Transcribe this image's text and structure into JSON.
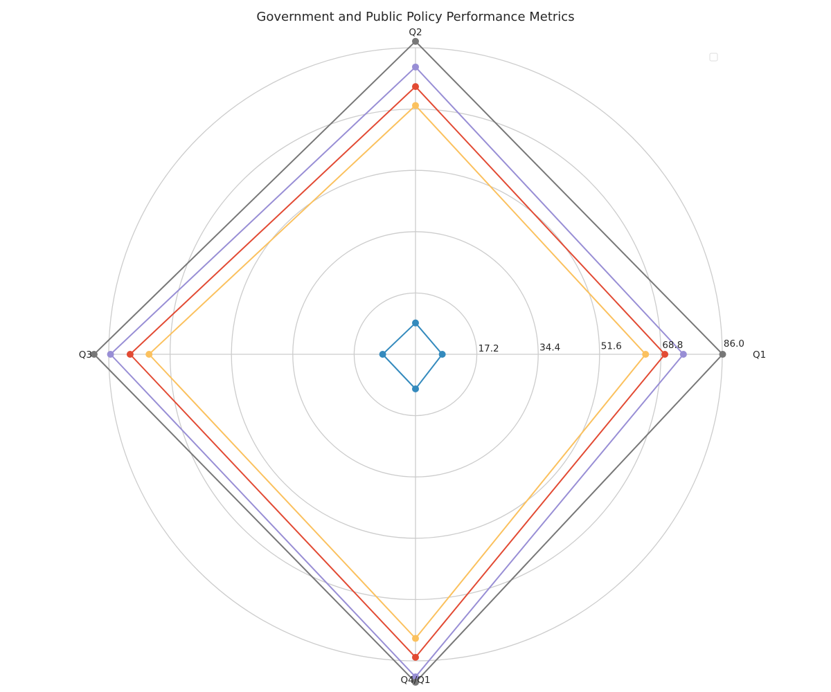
{
  "chart_data": {
    "type": "radar",
    "title": "Government and Public Policy Performance Metrics",
    "axes": [
      "Q1",
      "Q2",
      "Q3",
      "Q4/Q1"
    ],
    "rlim": [
      0,
      86.0
    ],
    "r_ticks": [
      17.2,
      34.4,
      51.6,
      68.8,
      86.0
    ],
    "r_tick_labels": [
      "17.2",
      "34.4",
      "51.6",
      "68.8",
      "86.0"
    ],
    "grid": true,
    "legend": {
      "placement": "top-right",
      "entries": []
    },
    "series": [
      {
        "values": [
          7.5,
          8.8,
          9.2,
          9.7
        ],
        "color": "#348abd"
      },
      {
        "values": [
          64.5,
          69.8,
          74.7,
          79.7
        ],
        "color": "#fbc15e"
      },
      {
        "values": [
          69.9,
          75.1,
          80.0,
          85.0
        ],
        "color": "#e24a33"
      },
      {
        "values": [
          75.1,
          80.6,
          85.5,
          90.5
        ],
        "color": "#988ed5"
      },
      {
        "values": [
          86.1,
          87.8,
          90.1,
          92.0
        ],
        "color": "#777777"
      }
    ]
  }
}
